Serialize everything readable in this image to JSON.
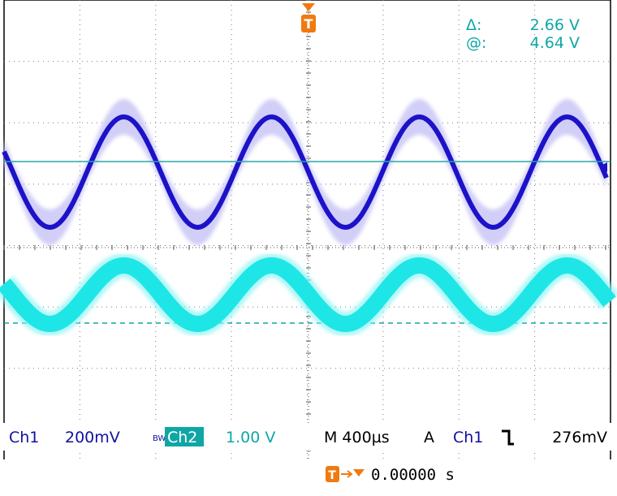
{
  "colors": {
    "ch1": "#1c12c8",
    "ch1_noise": "#c9c6f6",
    "ch2": "#1ee6e6",
    "ch2_dark": "#10a6a6",
    "cursor": "#2aa7a7",
    "accent": "#f07a10",
    "grid": "#606060",
    "label_blue": "#1010a0",
    "label_teal": "#10a6a6"
  },
  "trigger_marker": {
    "icon": "trigger-T-icon",
    "glyph": "T"
  },
  "cursor_readout": {
    "delta_label": "Δ:",
    "delta_value": "2.66 V",
    "at_label": "@:",
    "at_value": "4.64 V"
  },
  "status": {
    "ch1_label": "Ch1",
    "ch1_scale": "200mV",
    "bw_icon": "BW",
    "ch2_label": "Ch2",
    "ch2_scale": "1.00 V",
    "timebase": "M 400µs",
    "trigger_mode": "A",
    "trigger_source": "Ch1",
    "trigger_slope_icon": "falling-edge-icon",
    "trigger_slope_glyph": "⤵",
    "trigger_level": "276mV",
    "trigger_position_icon": "trigger-position-icon",
    "trigger_position": "0.00000 s"
  }
}
